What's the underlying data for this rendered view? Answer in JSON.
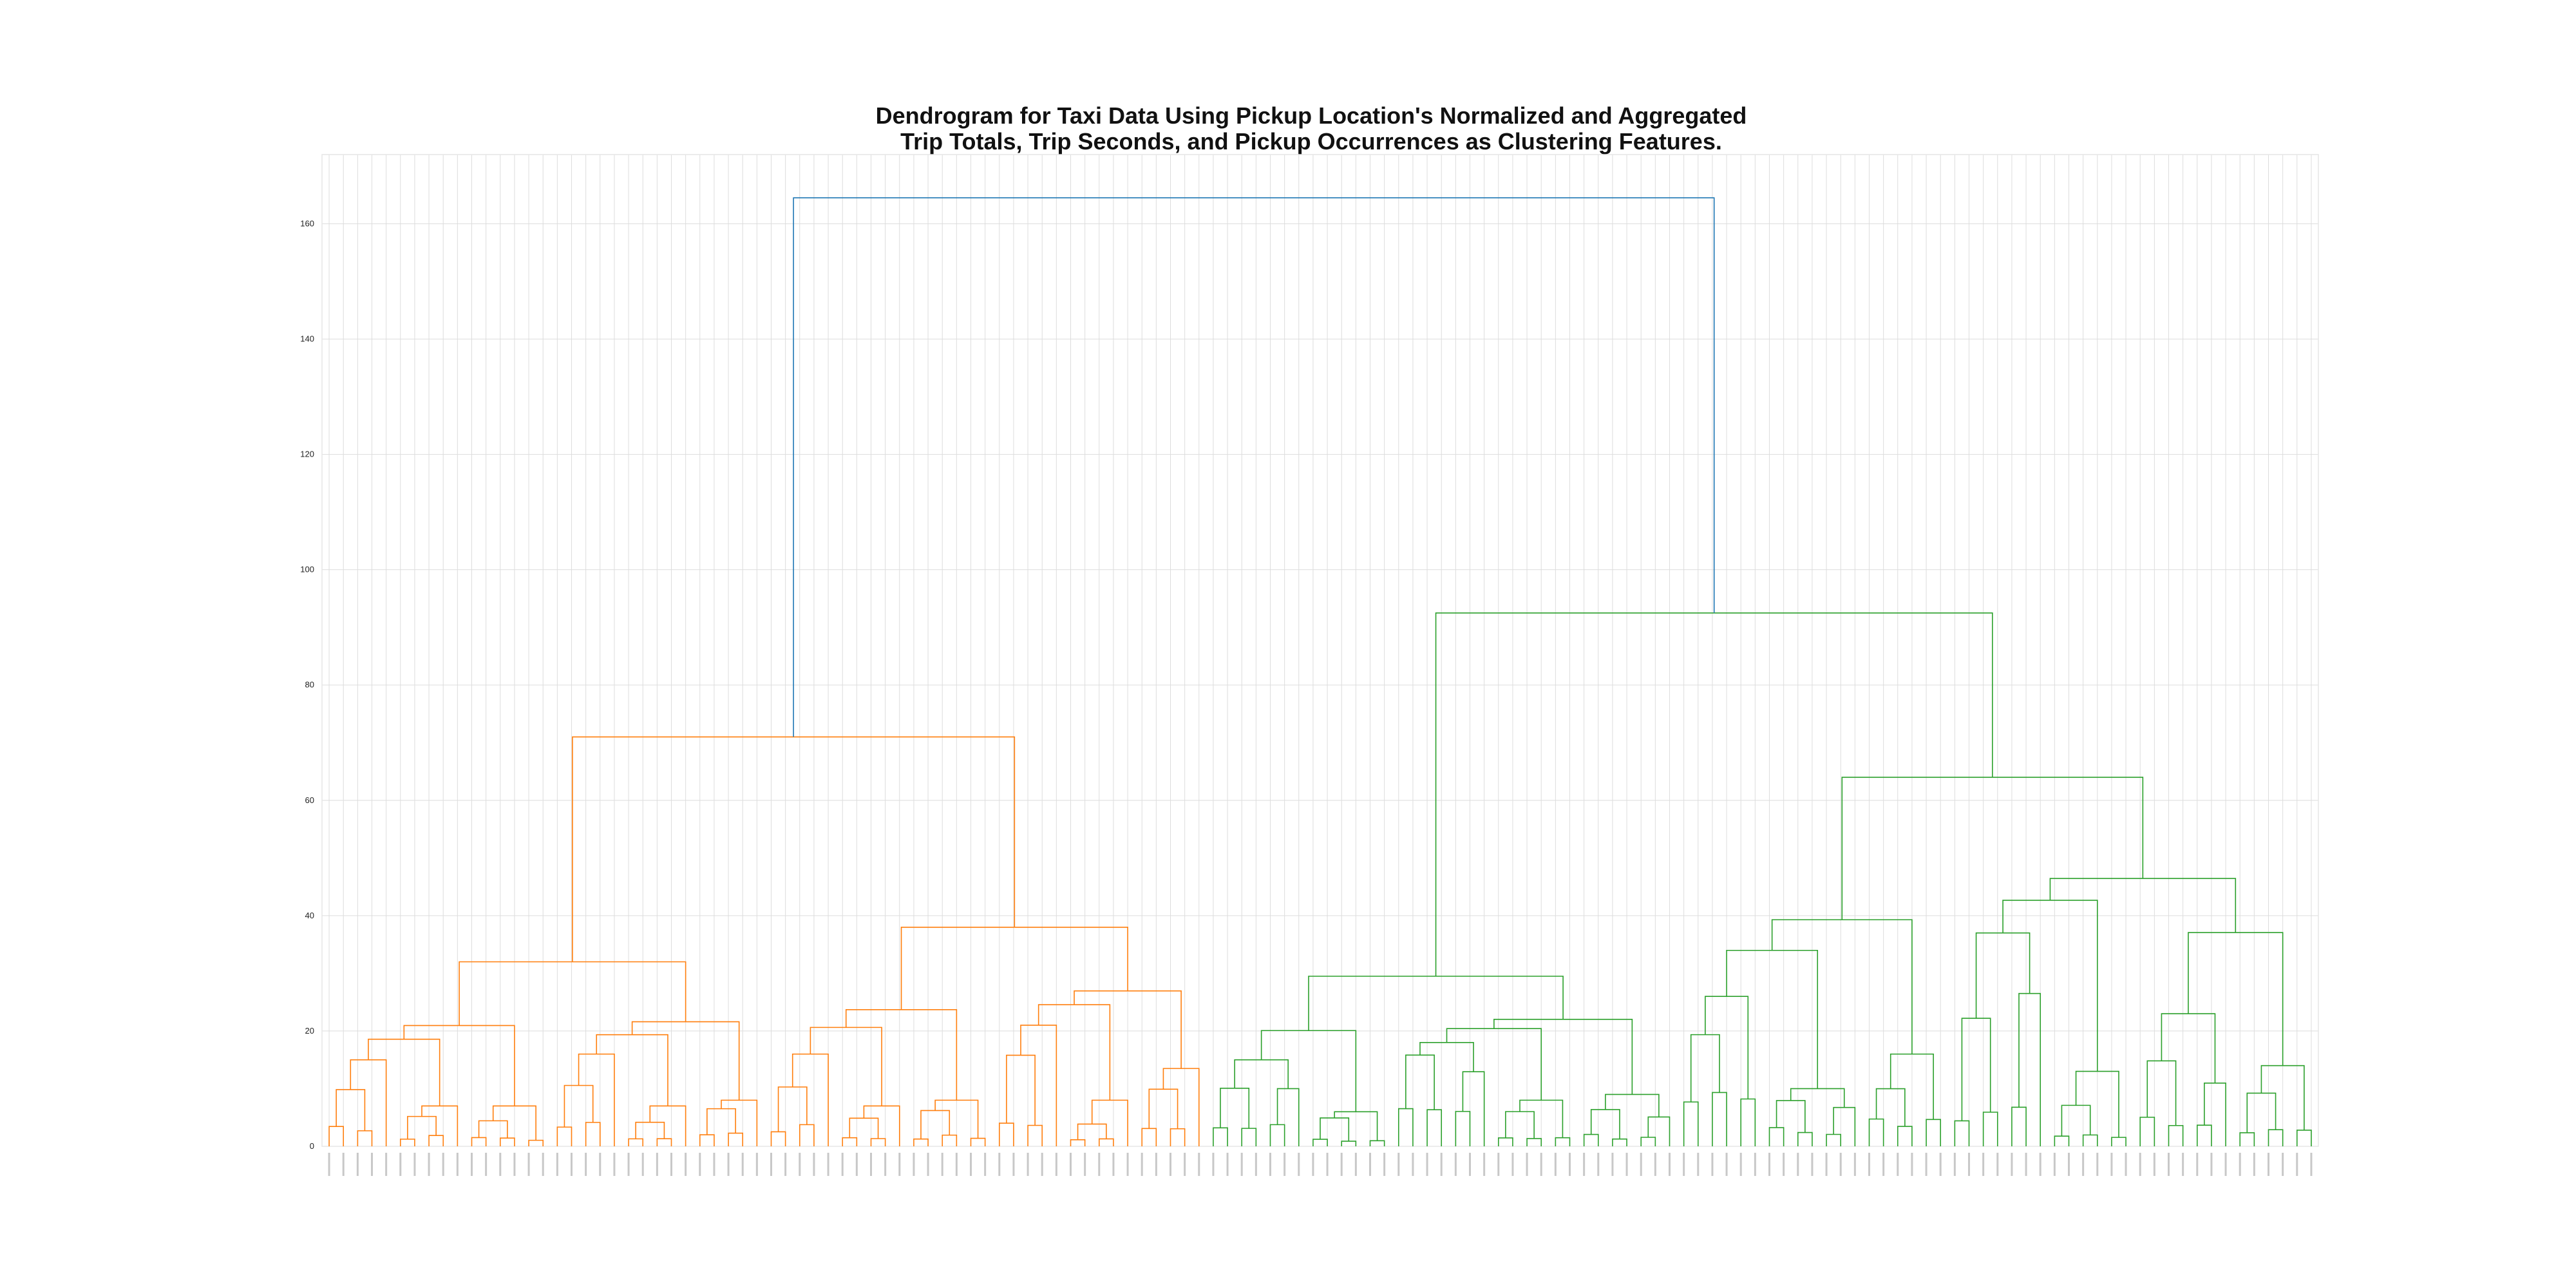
{
  "chart_data": {
    "type": "dendrogram",
    "title_lines": [
      "Dendrogram for Taxi Data Using Pickup Location's Normalized and Aggregated",
      "Trip Totals, Trip Seconds, and Pickup Occurrences as Clustering Features."
    ],
    "xlabel": "",
    "ylabel": "",
    "ylim": [
      0,
      172
    ],
    "yticks": [
      0,
      20,
      40,
      60,
      80,
      100,
      120,
      140,
      160
    ],
    "grid": true,
    "leaf_count": 140,
    "colors": {
      "root": "#1f77b4",
      "cluster_1": "#ff7f0e",
      "cluster_2": "#2ca02c",
      "grid": "#dddddd",
      "frame": "#e6e6e6"
    },
    "root": {
      "height": 164.5,
      "left_child": "cluster_1",
      "right_child": "cluster_2"
    },
    "cluster_1": {
      "leaves": 62,
      "height": 71.0,
      "subclusters": [
        {
          "height": 32.0,
          "groups": [
            [
              15.0,
              7.0,
              7.0
            ],
            [
              16.0,
              7.0,
              8.0
            ]
          ]
        },
        {
          "height": 38.0,
          "groups": [
            [
              16.0,
              7.0,
              8.0
            ],
            [
              21.0,
              8.0,
              13.5
            ]
          ]
        }
      ]
    },
    "cluster_2": {
      "leaves": 78,
      "height": 92.5,
      "subclusters": [
        {
          "height": 29.5,
          "groups": [
            [
              15.0,
              6.0
            ],
            [
              18.0,
              8.0,
              9.0
            ]
          ]
        },
        {
          "height": 64.0,
          "groups": [
            [
              26.0,
              10.0,
              16.0
            ],
            [
              37.0,
              13.0,
              23.0,
              14.0
            ]
          ]
        }
      ]
    }
  }
}
